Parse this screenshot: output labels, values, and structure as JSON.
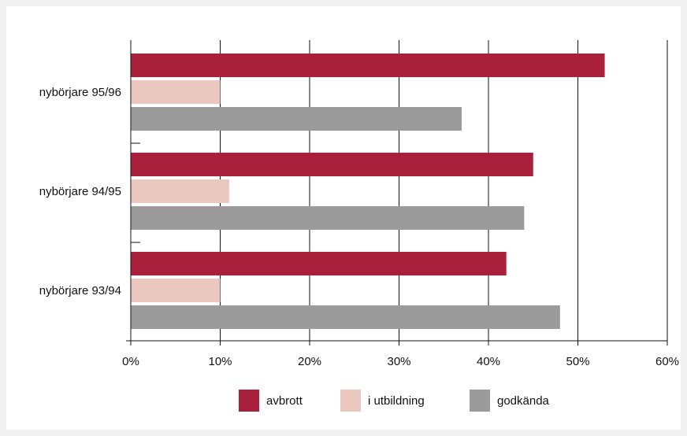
{
  "chart_data": {
    "type": "bar",
    "orientation": "horizontal",
    "categories": [
      "nybörjare 95/96",
      "nybörjare 94/95",
      "nybörjare 93/94"
    ],
    "series": [
      {
        "name": "avbrott",
        "color": "#a8203c",
        "values": [
          53,
          45,
          42
        ]
      },
      {
        "name": "i utbildning",
        "color": "#eac8c0",
        "values": [
          10,
          11,
          10
        ]
      },
      {
        "name": "godkända",
        "color": "#9b9b9b",
        "values": [
          37,
          44,
          48
        ]
      }
    ],
    "xlim": [
      0,
      60
    ],
    "ticks": [
      "0%",
      "10%",
      "20%",
      "30%",
      "40%",
      "50%",
      "60%"
    ],
    "tick_values": [
      0,
      10,
      20,
      30,
      40,
      50,
      60
    ],
    "grid": true,
    "legend": "bottom"
  }
}
